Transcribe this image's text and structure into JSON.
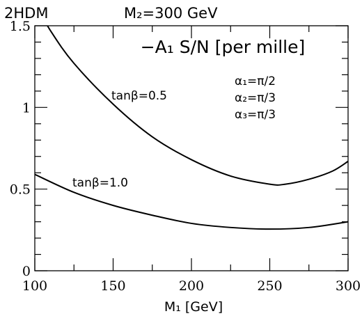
{
  "header": {
    "model": "2HDM",
    "mass_label": "M₂=300 GeV"
  },
  "chart_data": {
    "type": "line",
    "title": "−A₁ S/N [per mille]",
    "xlabel": "M₁ [GeV]",
    "ylabel": "",
    "xlim": [
      100,
      300
    ],
    "ylim": [
      0,
      1.5
    ],
    "x_ticks": [
      "100",
      "150",
      "200",
      "250",
      "300"
    ],
    "y_ticks": [
      "0",
      "0.5",
      "1",
      "1.5"
    ],
    "grid": false,
    "annotations": [
      "α₁=π/2",
      "α₂=π/3",
      "α₃=π/3"
    ],
    "series": [
      {
        "name": "tanβ=0.5",
        "x": [
          100,
          110,
          125,
          150,
          175,
          200,
          225,
          250,
          260,
          275,
          290,
          300
        ],
        "y": [
          1.64,
          1.47,
          1.27,
          1.02,
          0.82,
          0.68,
          0.58,
          0.53,
          0.53,
          0.56,
          0.61,
          0.67
        ]
      },
      {
        "name": "tanβ=1.0",
        "x": [
          100,
          125,
          150,
          175,
          200,
          225,
          250,
          275,
          300
        ],
        "y": [
          0.59,
          0.48,
          0.4,
          0.34,
          0.29,
          0.265,
          0.255,
          0.265,
          0.3
        ]
      }
    ]
  }
}
